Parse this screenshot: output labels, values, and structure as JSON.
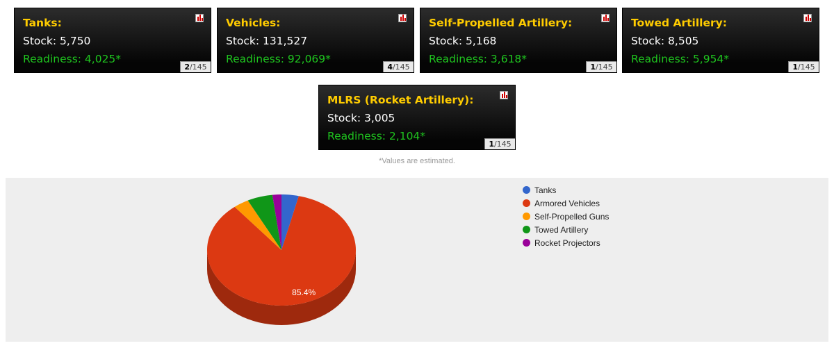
{
  "cards": [
    {
      "title": "Tanks:",
      "stock": "Stock: 5,750",
      "readiness": "Readiness: 4,025*",
      "rank": "2",
      "total": "/145"
    },
    {
      "title": "Vehicles:",
      "stock": "Stock: 131,527",
      "readiness": "Readiness: 92,069*",
      "rank": "4",
      "total": "/145"
    },
    {
      "title": "Self-Propelled Artillery:",
      "stock": "Stock: 5,168",
      "readiness": "Readiness: 3,618*",
      "rank": "1",
      "total": "/145"
    },
    {
      "title": "Towed Artillery:",
      "stock": "Stock: 8,505",
      "readiness": "Readiness: 5,954*",
      "rank": "1",
      "total": "/145"
    },
    {
      "title": "MLRS (Rocket Artillery):",
      "stock": "Stock: 3,005",
      "readiness": "Readiness: 2,104*",
      "rank": "1",
      "total": "/145"
    }
  ],
  "note": "*Values are estimated.",
  "colors": {
    "title": "#ffcc00",
    "readiness": "#1fc41f",
    "panel": "#eeeeee"
  },
  "chart_data": {
    "type": "pie",
    "three_d": true,
    "title": "",
    "legend_position": "right",
    "categories": [
      "Tanks",
      "Armored Vehicles",
      "Self-Propelled Guns",
      "Towed Artillery",
      "Rocket Projectors"
    ],
    "values": [
      5750,
      131527,
      5168,
      8505,
      3005
    ],
    "colors": [
      "#3366cc",
      "#dc3912",
      "#ff9900",
      "#109618",
      "#990099"
    ],
    "data_labels": [
      "",
      "85.4%",
      "",
      "",
      ""
    ]
  }
}
